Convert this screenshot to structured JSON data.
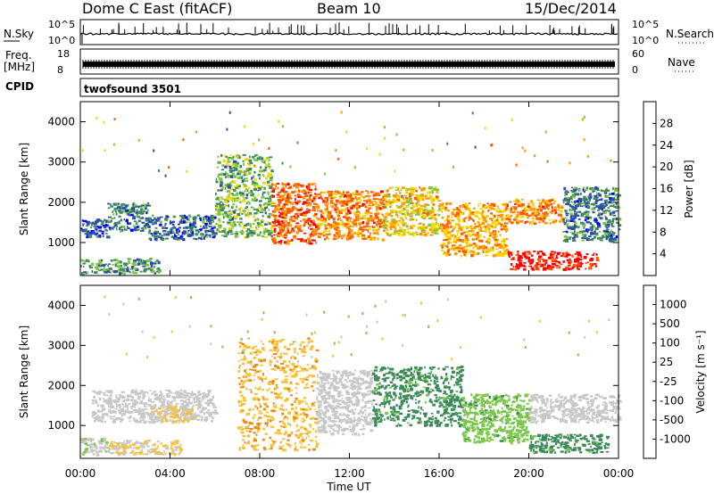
{
  "header": {
    "radar": "Dome C East (fitACF)",
    "beam": "Beam 10",
    "date": "15/Dec/2014"
  },
  "strip_labels": {
    "nsky": "N.Sky",
    "freq_line1": "Freq.",
    "freq_line2": "[MHz]",
    "cpid": "CPID",
    "nsearch": "N.Search",
    "nave": "Nave",
    "cpid_value": "twofsound 3501",
    "noise_ticks": [
      "10^5",
      "10^0"
    ],
    "freq_ticks": [
      "18",
      "8"
    ],
    "nave_ticks": [
      "60",
      "0"
    ]
  },
  "colors": {
    "power": [
      "#0000ff",
      "#2a4fa8",
      "#3f8a5a",
      "#7ec640",
      "#f5d800",
      "#ff9a00",
      "#ff5a00",
      "#ff0000"
    ],
    "velocity": [
      "#1f3f9f",
      "#2f6a8c",
      "#3a8a5a",
      "#7cc84a",
      "#c8c8c8",
      "#f7c23a",
      "#f08a10",
      "#ff5a10",
      "#ff0000"
    ],
    "frame": "#000000"
  },
  "chart_data": [
    {
      "type": "heatmap",
      "name": "power",
      "xlabel": "",
      "ylabel": "Slant Range [km]",
      "xticks": [
        "00:00",
        "04:00",
        "08:00",
        "12:00",
        "16:00",
        "20:00",
        "00:00"
      ],
      "xlim": [
        0,
        24
      ],
      "yticks": [
        1000,
        2000,
        3000,
        4000
      ],
      "ylim": [
        180,
        4500
      ],
      "colorbar_label": "Power [dB]",
      "colorbar_ticks": [
        4,
        8,
        12,
        16,
        20,
        24,
        28
      ],
      "colorbar_range": [
        0,
        30
      ],
      "regions": [
        {
          "t0": 0.0,
          "t1": 3.5,
          "r0": 250,
          "r1": 620,
          "level": 10
        },
        {
          "t0": 0.0,
          "t1": 1.2,
          "r0": 1150,
          "r1": 1600,
          "level": 6
        },
        {
          "t0": 1.2,
          "t1": 3.0,
          "r0": 1300,
          "r1": 2000,
          "level": 8
        },
        {
          "t0": 3.0,
          "t1": 6.0,
          "r0": 1100,
          "r1": 1700,
          "level": 7
        },
        {
          "t0": 6.0,
          "t1": 8.5,
          "r0": 1150,
          "r1": 3200,
          "level": 12
        },
        {
          "t0": 8.5,
          "t1": 10.5,
          "r0": 1000,
          "r1": 2500,
          "level": 24
        },
        {
          "t0": 10.5,
          "t1": 13.5,
          "r0": 1100,
          "r1": 2300,
          "level": 22
        },
        {
          "t0": 13.5,
          "t1": 16.0,
          "r0": 1200,
          "r1": 2400,
          "level": 18
        },
        {
          "t0": 16.0,
          "t1": 19.0,
          "r0": 700,
          "r1": 2000,
          "level": 20
        },
        {
          "t0": 19.0,
          "t1": 21.5,
          "r0": 1500,
          "r1": 2100,
          "level": 22
        },
        {
          "t0": 19.0,
          "t1": 23.0,
          "r0": 350,
          "r1": 800,
          "level": 28
        },
        {
          "t0": 21.5,
          "t1": 24.0,
          "r0": 1050,
          "r1": 2400,
          "level": 8
        }
      ]
    },
    {
      "type": "heatmap",
      "name": "velocity",
      "xlabel": "Time UT",
      "ylabel": "Slant Range [km]",
      "xticks": [
        "00:00",
        "04:00",
        "08:00",
        "12:00",
        "16:00",
        "20:00",
        "00:00"
      ],
      "xlim": [
        0,
        24
      ],
      "yticks": [
        1000,
        2000,
        3000,
        4000
      ],
      "ylim": [
        180,
        4500
      ],
      "colorbar_label": "Velocity [m s⁻¹]",
      "colorbar_ticks": [
        1000,
        500,
        100,
        25,
        -25,
        -100,
        -500,
        -1000
      ],
      "colorbar_range": [
        -1200,
        1200
      ],
      "regions": [
        {
          "t0": 0.0,
          "t1": 1.2,
          "r0": 300,
          "r1": 700,
          "level": 80
        },
        {
          "t0": 1.2,
          "t1": 4.5,
          "r0": 300,
          "r1": 650,
          "level": -120
        },
        {
          "t0": 0.5,
          "t1": 6.0,
          "r0": 1100,
          "r1": 1900,
          "level": 0
        },
        {
          "t0": 3.0,
          "t1": 5.0,
          "r0": 1100,
          "r1": 1500,
          "level": -150
        },
        {
          "t0": 7.0,
          "t1": 10.5,
          "r0": 400,
          "r1": 3200,
          "level": -350
        },
        {
          "t0": 10.5,
          "t1": 13.0,
          "r0": 800,
          "r1": 2400,
          "level": 0
        },
        {
          "t0": 13.0,
          "t1": 17.0,
          "r0": 1000,
          "r1": 2500,
          "level": 500
        },
        {
          "t0": 17.0,
          "t1": 20.0,
          "r0": 600,
          "r1": 1800,
          "level": 300
        },
        {
          "t0": 20.0,
          "t1": 24.0,
          "r0": 1100,
          "r1": 1800,
          "level": 0
        },
        {
          "t0": 20.0,
          "t1": 23.5,
          "r0": 350,
          "r1": 800,
          "level": 500
        }
      ]
    }
  ]
}
